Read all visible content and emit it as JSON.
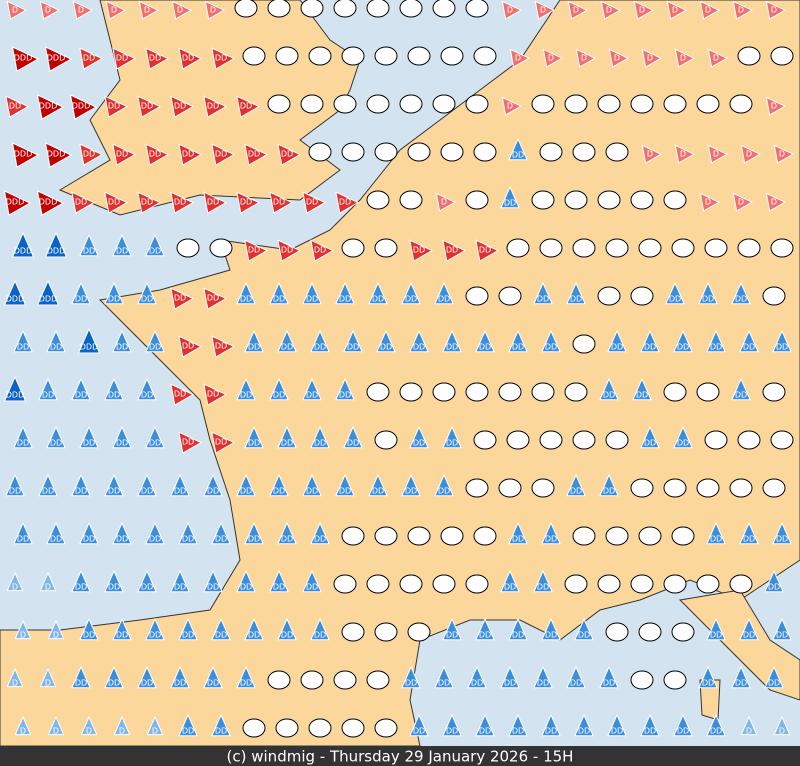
{
  "footer": "(c) windmig - Thursday 29 January 2026 - 15H",
  "markers": [
    [
      "D",
      "D",
      "D",
      "D",
      "D",
      "D",
      "D",
      null,
      null,
      null,
      null,
      null,
      null,
      null,
      null,
      "D",
      "D",
      "D",
      "D",
      "D",
      "D",
      "D",
      "D",
      "D"
    ],
    [
      "DDD",
      "DDD",
      "DD",
      "DD",
      "DD",
      "DD",
      "DD",
      null,
      null,
      null,
      null,
      null,
      null,
      null,
      null,
      "D",
      "D",
      "D",
      "D",
      "D",
      "D",
      "D",
      null,
      null
    ],
    [
      "DD",
      "DDD",
      "DDD",
      "DD",
      "DD",
      "DD",
      "DD",
      "DD",
      null,
      null,
      null,
      null,
      null,
      null,
      null,
      "D",
      null,
      null,
      null,
      null,
      null,
      null,
      null,
      "D"
    ],
    [
      "DDD",
      "DDD",
      "DD",
      "DD",
      "DD",
      "DD",
      "DD",
      "DD",
      "DD",
      null,
      null,
      null,
      null,
      null,
      null,
      "DD",
      null,
      null,
      null,
      "D",
      "D",
      "D",
      "D",
      "D"
    ],
    [
      "DDD",
      "DDD",
      "DD",
      "DD",
      "DD",
      "DD",
      "DD",
      "DD",
      "DD",
      "DD",
      "DD",
      null,
      null,
      "D",
      null,
      "DD",
      null,
      null,
      null,
      null,
      null,
      "D",
      "D",
      "D"
    ],
    [
      "DDD",
      "DDD",
      "DD",
      "DD",
      "DD",
      null,
      null,
      "DD",
      "DD",
      "DD",
      null,
      null,
      "DD",
      "DD",
      "DD",
      null,
      null,
      null,
      null,
      null,
      null,
      null,
      null,
      null
    ],
    [
      "DDD",
      "DDD",
      "DD",
      "DD",
      "DD",
      "DD",
      "DD",
      "DD",
      "DD",
      "DD",
      "DD",
      "DD",
      "DD",
      "DD",
      null,
      null,
      "DD",
      "DD",
      null,
      null,
      "DD",
      "DD",
      "DD",
      null
    ],
    [
      "DD",
      "DD",
      "DDD",
      "DD",
      "DD",
      "DD",
      "DD",
      "DD",
      "DD",
      "DD",
      "DD",
      "DD",
      "DD",
      "DD",
      "DD",
      "DD",
      "DD",
      null,
      "DD",
      "DD",
      "DD",
      "DD",
      "DD",
      "DD"
    ],
    [
      "DDD",
      "DD",
      "DD",
      "DD",
      "DD",
      "DD",
      "DD",
      "DD",
      "DD",
      "DD",
      "DD",
      null,
      null,
      null,
      null,
      null,
      null,
      null,
      "DD",
      "DD",
      null,
      null,
      "DD",
      null
    ],
    [
      "DD",
      "DD",
      "DD",
      "DD",
      "DD",
      "DD",
      "DD",
      "DD",
      "DD",
      "DD",
      "DD",
      null,
      "DD",
      "DD",
      null,
      null,
      null,
      null,
      null,
      "DD",
      "DD",
      null,
      null,
      null
    ],
    [
      "DD",
      "DD",
      "DD",
      "DD",
      "DD",
      "DD",
      "DD",
      "DD",
      "DD",
      "DD",
      "DD",
      "DD",
      "DD",
      "DD",
      null,
      null,
      null,
      "DD",
      "DD",
      null,
      null,
      null,
      null,
      null
    ],
    [
      "DD",
      "DD",
      "DD",
      "DD",
      "DD",
      "DD",
      "DD",
      "DD",
      "DD",
      "DD",
      null,
      null,
      null,
      null,
      null,
      "DD",
      "DD",
      null,
      null,
      null,
      null,
      "DD",
      "DD",
      "DD"
    ],
    [
      "D",
      "D",
      "DD",
      "DD",
      "DD",
      "DD",
      "DD",
      "DD",
      "DD",
      "DD",
      null,
      null,
      null,
      null,
      null,
      "DD",
      "DD",
      null,
      null,
      null,
      null,
      null,
      null,
      "DD"
    ],
    [
      "D",
      "D",
      "DD",
      "DD",
      "DD",
      "DD",
      "DD",
      "DD",
      "DD",
      "DD",
      null,
      null,
      null,
      "DD",
      "DD",
      "DD",
      "DD",
      "DD",
      null,
      null,
      null,
      "DD",
      "DD",
      "DD"
    ],
    [
      "D",
      "D",
      "DD",
      "DD",
      "DD",
      "DD",
      "DD",
      "DD",
      null,
      null,
      null,
      null,
      "DD",
      "DD",
      "DD",
      "DD",
      "DD",
      "DD",
      "DD",
      null,
      null,
      "DD",
      "DD",
      "DD"
    ],
    [
      "D",
      "D",
      "D",
      "D",
      "D",
      "DD",
      "DD",
      null,
      null,
      null,
      null,
      null,
      "DD",
      "DD",
      "DD",
      "DD",
      "DD",
      "DD",
      "DD",
      "DD",
      "DD",
      "DD",
      "D",
      "D"
    ]
  ]
}
